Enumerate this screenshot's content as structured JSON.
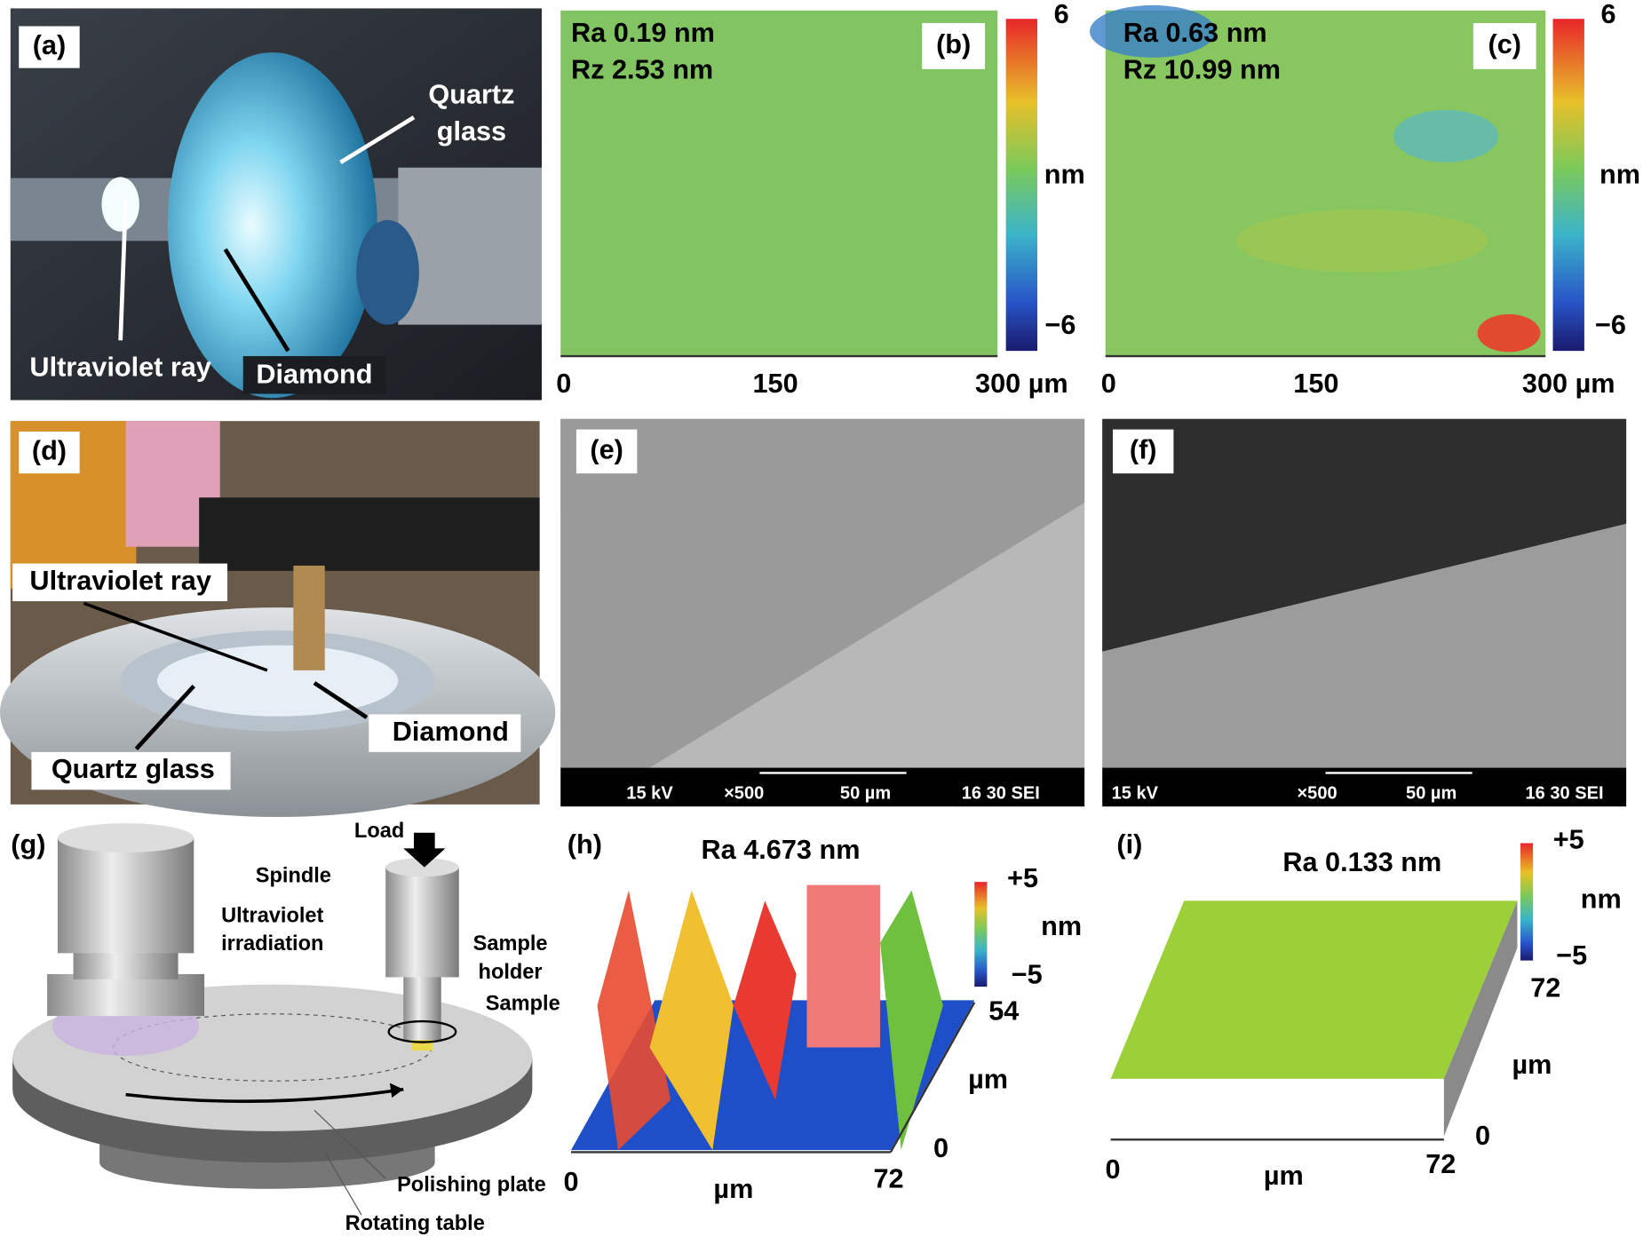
{
  "panels": {
    "a": {
      "label": "(a)",
      "texts": [
        "Quartz",
        "glass",
        "Ultraviolet ray",
        "Diamond"
      ]
    },
    "b": {
      "label": "(b)",
      "stats": [
        "Ra 0.19 nm",
        "Rz 2.53 nm"
      ],
      "colorbar": [
        "6",
        "nm",
        "−6"
      ],
      "axis": [
        "0",
        "150",
        "300 µm"
      ]
    },
    "c": {
      "label": "(c)",
      "stats": [
        "Ra 0.63 nm",
        "Rz 10.99 nm"
      ],
      "colorbar": [
        "6",
        "nm",
        "−6"
      ],
      "axis": [
        "0",
        "150",
        "300 µm"
      ]
    },
    "d": {
      "label": "(d)",
      "texts": [
        "Ultraviolet ray",
        "Diamond",
        "Quartz glass"
      ]
    },
    "e": {
      "label": "(e)",
      "scalebar": [
        "15 kV",
        "×500",
        "50 µm",
        "16 30 SEI"
      ]
    },
    "f": {
      "label": "(f)",
      "scalebar": [
        "15 kV",
        "×500",
        "50 µm",
        "16 30 SEI"
      ]
    },
    "g": {
      "label": "(g)",
      "texts": [
        "Load",
        "Spindle",
        "Ultraviolet",
        "irradiation",
        "Sample",
        "holder",
        "Sample",
        "Polishing plate",
        "Rotating table"
      ]
    },
    "h": {
      "label": "(h)",
      "title": "Ra 4.673 nm",
      "colorbar": [
        "+5",
        "nm",
        "−5"
      ],
      "yaxis": [
        "54",
        "µm",
        "0"
      ],
      "xaxis": [
        "0",
        "µm",
        "72"
      ]
    },
    "i": {
      "label": "(i)",
      "title": "Ra 0.133 nm",
      "colorbar": [
        "+5",
        "nm",
        "−5"
      ],
      "yaxis": [
        "72",
        "µm",
        "0"
      ],
      "xaxis": [
        "0",
        "µm",
        "72"
      ]
    }
  }
}
